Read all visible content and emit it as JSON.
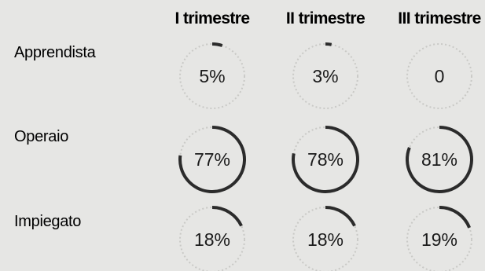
{
  "chart_data": {
    "type": "pie",
    "columns": [
      "I trimestre",
      "II trimestre",
      "III trimestre"
    ],
    "rows": [
      {
        "label": "Apprendista",
        "values": [
          5,
          3,
          0
        ],
        "display": [
          "5%",
          "3%",
          "0"
        ]
      },
      {
        "label": "Operaio",
        "values": [
          77,
          78,
          81
        ],
        "display": [
          "77%",
          "78%",
          "81%"
        ]
      },
      {
        "label": "Impiegato",
        "values": [
          18,
          18,
          19
        ],
        "display": [
          "18%",
          "18%",
          "19%"
        ]
      }
    ],
    "unit": "%",
    "max": 100
  },
  "colors": {
    "background": "#e6e6e4",
    "arc": "#2b2b2b",
    "ring": "#c9c9c6",
    "text": "#1b1b1b"
  }
}
